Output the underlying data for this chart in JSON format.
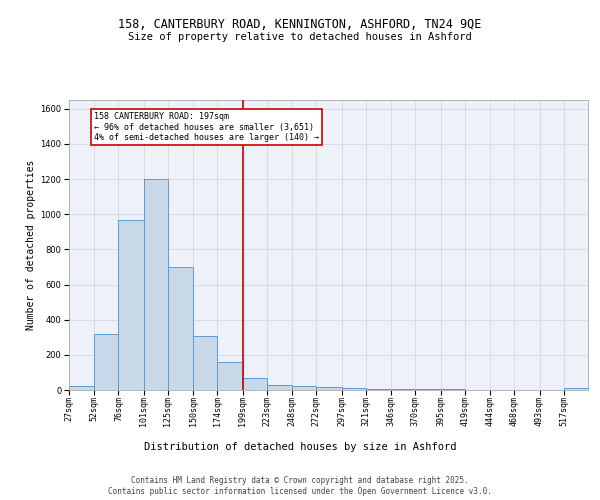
{
  "title_line1": "158, CANTERBURY ROAD, KENNINGTON, ASHFORD, TN24 9QE",
  "title_line2": "Size of property relative to detached houses in Ashford",
  "xlabel": "Distribution of detached houses by size in Ashford",
  "ylabel": "Number of detached properties",
  "bar_color": "#c8d8e8",
  "bar_edge_color": "#5b9bd5",
  "grid_color": "#d0d8e8",
  "bg_color": "#eef2f8",
  "vline_color": "#cc0000",
  "vline_x": 199,
  "annotation_text": "158 CANTERBURY ROAD: 197sqm\n← 96% of detached houses are smaller (3,651)\n4% of semi-detached houses are larger (140) →",
  "annotation_box_color": "#cc0000",
  "annotation_text_color": "#000000",
  "categories": [
    "27sqm",
    "52sqm",
    "76sqm",
    "101sqm",
    "125sqm",
    "150sqm",
    "174sqm",
    "199sqm",
    "223sqm",
    "248sqm",
    "272sqm",
    "297sqm",
    "321sqm",
    "346sqm",
    "370sqm",
    "395sqm",
    "419sqm",
    "444sqm",
    "468sqm",
    "493sqm",
    "517sqm"
  ],
  "bin_edges": [
    27,
    52,
    76,
    101,
    125,
    150,
    174,
    199,
    223,
    248,
    272,
    297,
    321,
    346,
    370,
    395,
    419,
    444,
    468,
    493,
    517,
    541
  ],
  "values": [
    25,
    320,
    970,
    1200,
    700,
    305,
    160,
    70,
    30,
    20,
    15,
    10,
    5,
    5,
    5,
    5,
    2,
    2,
    2,
    2,
    10
  ],
  "ylim": [
    0,
    1650
  ],
  "yticks": [
    0,
    200,
    400,
    600,
    800,
    1000,
    1200,
    1400,
    1600
  ],
  "footer_line1": "Contains HM Land Registry data © Crown copyright and database right 2025.",
  "footer_line2": "Contains public sector information licensed under the Open Government Licence v3.0.",
  "title_fontsize": 8.5,
  "subtitle_fontsize": 7.5,
  "ylabel_fontsize": 7,
  "xlabel_fontsize": 7.5,
  "tick_fontsize": 6,
  "annotation_fontsize": 6,
  "footer_fontsize": 5.5
}
